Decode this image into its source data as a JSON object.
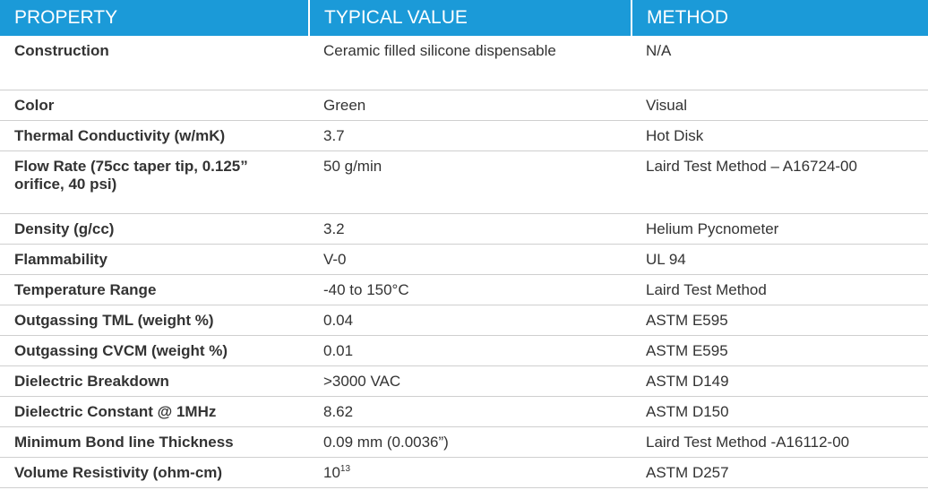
{
  "table": {
    "header": [
      "PROPERTY",
      "TYPICAL VALUE",
      "METHOD"
    ],
    "rows": [
      [
        "Construction",
        "Ceramic filled silicone dispensable",
        "N/A"
      ],
      [
        "Color",
        "Green",
        "Visual"
      ],
      [
        "Thermal Conductivity (w/mK)",
        "3.7",
        "Hot Disk"
      ],
      [
        "Flow Rate (75cc taper tip, 0.125” orifice, 40 psi)",
        "50 g/min",
        "Laird Test Method – A16724-00"
      ],
      [
        "Density (g/cc)",
        "3.2",
        "Helium Pycnometer"
      ],
      [
        "Flammability",
        "V-0",
        "UL 94"
      ],
      [
        "Temperature Range",
        "-40 to 150°C",
        "Laird Test Method"
      ],
      [
        "Outgassing TML (weight %)",
        "0.04",
        "ASTM E595"
      ],
      [
        "Outgassing CVCM (weight %)",
        "0.01",
        "ASTM E595"
      ],
      [
        "Dielectric Breakdown",
        ">3000 VAC",
        "ASTM D149"
      ],
      [
        "Dielectric Constant @ 1MHz",
        "8.62",
        "ASTM D150"
      ],
      [
        "Minimum Bond line Thickness",
        "0.09 mm (0.0036”)",
        "Laird Test Method -A16112-00"
      ],
      [
        "Volume Resistivity (ohm-cm)",
        {
          "base": "10",
          "sup": "13"
        },
        "ASTM D257"
      ]
    ]
  }
}
